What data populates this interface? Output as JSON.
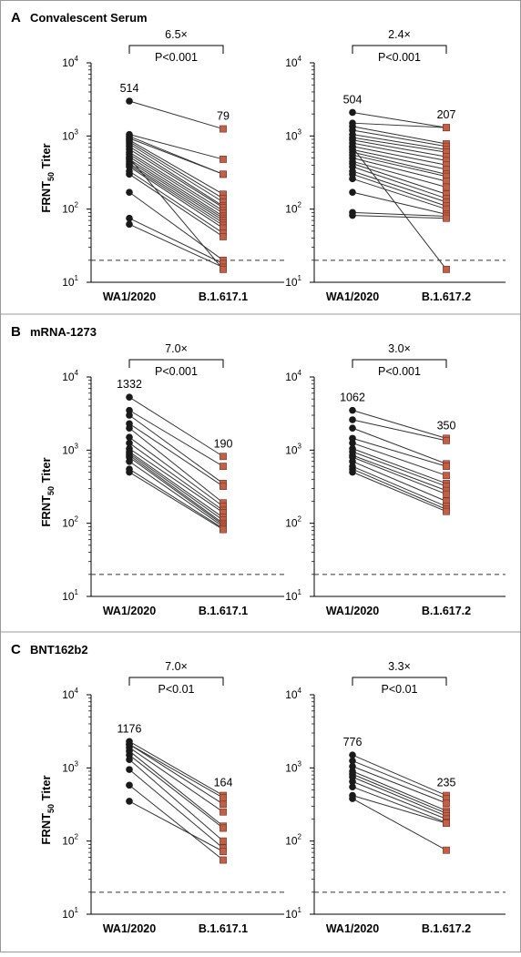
{
  "chart_data": [
    {
      "panel": "A",
      "title": "Convalescent Serum",
      "type": "scatter",
      "scale": "log",
      "ylabel": "FRNT50 Titer",
      "ylabel_main": "FRNT",
      "ylabel_sub": "50",
      "ylabel_rest": " Titer",
      "ylim": [
        10,
        10000
      ],
      "yticks": [
        "10",
        "10",
        "10",
        "10"
      ],
      "ytick_exponents": [
        "1",
        "2",
        "3",
        "4"
      ],
      "limit_of_detection": 20,
      "subplots": [
        {
          "categories": [
            "WA1/2020",
            "B.1.617.1"
          ],
          "fold_change": "6.5×",
          "p_value": "P<0.001",
          "gmt_labels": [
            "514",
            "79"
          ],
          "pairs": [
            [
              3000,
              1250
            ],
            [
              1050,
              480
            ],
            [
              990,
              300
            ],
            [
              930,
              300
            ],
            [
              880,
              160
            ],
            [
              830,
              140
            ],
            [
              780,
              125
            ],
            [
              720,
              110
            ],
            [
              660,
              105
            ],
            [
              600,
              95
            ],
            [
              560,
              88
            ],
            [
              520,
              80
            ],
            [
              480,
              75
            ],
            [
              450,
              70
            ],
            [
              420,
              65
            ],
            [
              400,
              60
            ],
            [
              380,
              55
            ],
            [
              330,
              47
            ],
            [
              300,
              42
            ],
            [
              170,
              20
            ],
            [
              75,
              18
            ],
            [
              62,
              16
            ],
            [
              500,
              15
            ]
          ]
        },
        {
          "categories": [
            "WA1/2020",
            "B.1.617.2"
          ],
          "fold_change": "2.4×",
          "p_value": "P<0.001",
          "gmt_labels": [
            "504",
            "207"
          ],
          "pairs": [
            [
              2100,
              1300
            ],
            [
              1500,
              1300
            ],
            [
              1350,
              780
            ],
            [
              1200,
              720
            ],
            [
              1050,
              650
            ],
            [
              950,
              600
            ],
            [
              880,
              520
            ],
            [
              800,
              460
            ],
            [
              720,
              400
            ],
            [
              650,
              350
            ],
            [
              600,
              300
            ],
            [
              550,
              280
            ],
            [
              500,
              240
            ],
            [
              450,
              200
            ],
            [
              420,
              160
            ],
            [
              380,
              140
            ],
            [
              330,
              125
            ],
            [
              300,
              110
            ],
            [
              260,
              100
            ],
            [
              170,
              85
            ],
            [
              90,
              80
            ],
            [
              82,
              75
            ],
            [
              700,
              15
            ]
          ]
        }
      ]
    },
    {
      "panel": "B",
      "title": "mRNA-1273",
      "type": "scatter",
      "scale": "log",
      "ylabel": "FRNT50 Titer",
      "ylabel_main": "FRNT",
      "ylabel_sub": "50",
      "ylabel_rest": " Titer",
      "ylim": [
        10,
        10000
      ],
      "yticks": [
        "10",
        "10",
        "10",
        "10"
      ],
      "ytick_exponents": [
        "1",
        "2",
        "3",
        "4"
      ],
      "limit_of_detection": 20,
      "subplots": [
        {
          "categories": [
            "WA1/2020",
            "B.1.617.1"
          ],
          "fold_change": "7.0×",
          "p_value": "P<0.001",
          "gmt_labels": [
            "1332",
            "190"
          ],
          "pairs": [
            [
              5300,
              820
            ],
            [
              3500,
              600
            ],
            [
              3000,
              350
            ],
            [
              2300,
              320
            ],
            [
              2000,
              190
            ],
            [
              1500,
              170
            ],
            [
              1250,
              150
            ],
            [
              1050,
              140
            ],
            [
              950,
              120
            ],
            [
              900,
              110
            ],
            [
              850,
              100
            ],
            [
              800,
              95
            ],
            [
              700,
              90
            ],
            [
              550,
              85
            ],
            [
              500,
              82
            ]
          ]
        },
        {
          "categories": [
            "WA1/2020",
            "B.1.617.2"
          ],
          "fold_change": "3.0×",
          "p_value": "P<0.001",
          "gmt_labels": [
            "1062",
            "350"
          ],
          "pairs": [
            [
              3500,
              1450
            ],
            [
              2600,
              1350
            ],
            [
              2000,
              650
            ],
            [
              1450,
              600
            ],
            [
              1250,
              450
            ],
            [
              1050,
              350
            ],
            [
              950,
              320
            ],
            [
              850,
              280
            ],
            [
              800,
              250
            ],
            [
              700,
              200
            ],
            [
              600,
              170
            ],
            [
              550,
              155
            ],
            [
              500,
              145
            ]
          ]
        }
      ]
    },
    {
      "panel": "C",
      "title": "BNT162b2",
      "type": "scatter",
      "scale": "log",
      "ylabel": "FRNT50 Titer",
      "ylabel_main": "FRNT",
      "ylabel_sub": "50",
      "ylabel_rest": " Titer",
      "ylim": [
        10,
        10000
      ],
      "yticks": [
        "10",
        "10",
        "10",
        "10"
      ],
      "ytick_exponents": [
        "1",
        "2",
        "3",
        "4"
      ],
      "limit_of_detection": 20,
      "subplots": [
        {
          "categories": [
            "WA1/2020",
            "B.1.617.1"
          ],
          "fold_change": "7.0×",
          "p_value": "P<0.01",
          "gmt_labels": [
            "1176",
            "164"
          ],
          "pairs": [
            [
              2300,
              420
            ],
            [
              2100,
              320
            ],
            [
              1900,
              250
            ],
            [
              1700,
              160
            ],
            [
              1500,
              150
            ],
            [
              1300,
              100
            ],
            [
              950,
              80
            ],
            [
              580,
              55
            ],
            [
              350,
              72
            ],
            [
              2100,
              390
            ]
          ]
        },
        {
          "categories": [
            "WA1/2020",
            "B.1.617.2"
          ],
          "fold_change": "3.3×",
          "p_value": "P<0.01",
          "gmt_labels": [
            "776",
            "235"
          ],
          "pairs": [
            [
              1500,
              420
            ],
            [
              1250,
              380
            ],
            [
              1050,
              330
            ],
            [
              900,
              260
            ],
            [
              820,
              240
            ],
            [
              750,
              220
            ],
            [
              650,
              200
            ],
            [
              550,
              180
            ],
            [
              420,
              175
            ],
            [
              380,
              75
            ]
          ]
        }
      ]
    }
  ],
  "colors": {
    "wa1_marker": "#1a1a1a",
    "variant_marker": "#c06048",
    "variant_marker_edge": "#7a2e1e",
    "line": "#333333",
    "lod_line": "#333333",
    "divider": "#999999"
  }
}
